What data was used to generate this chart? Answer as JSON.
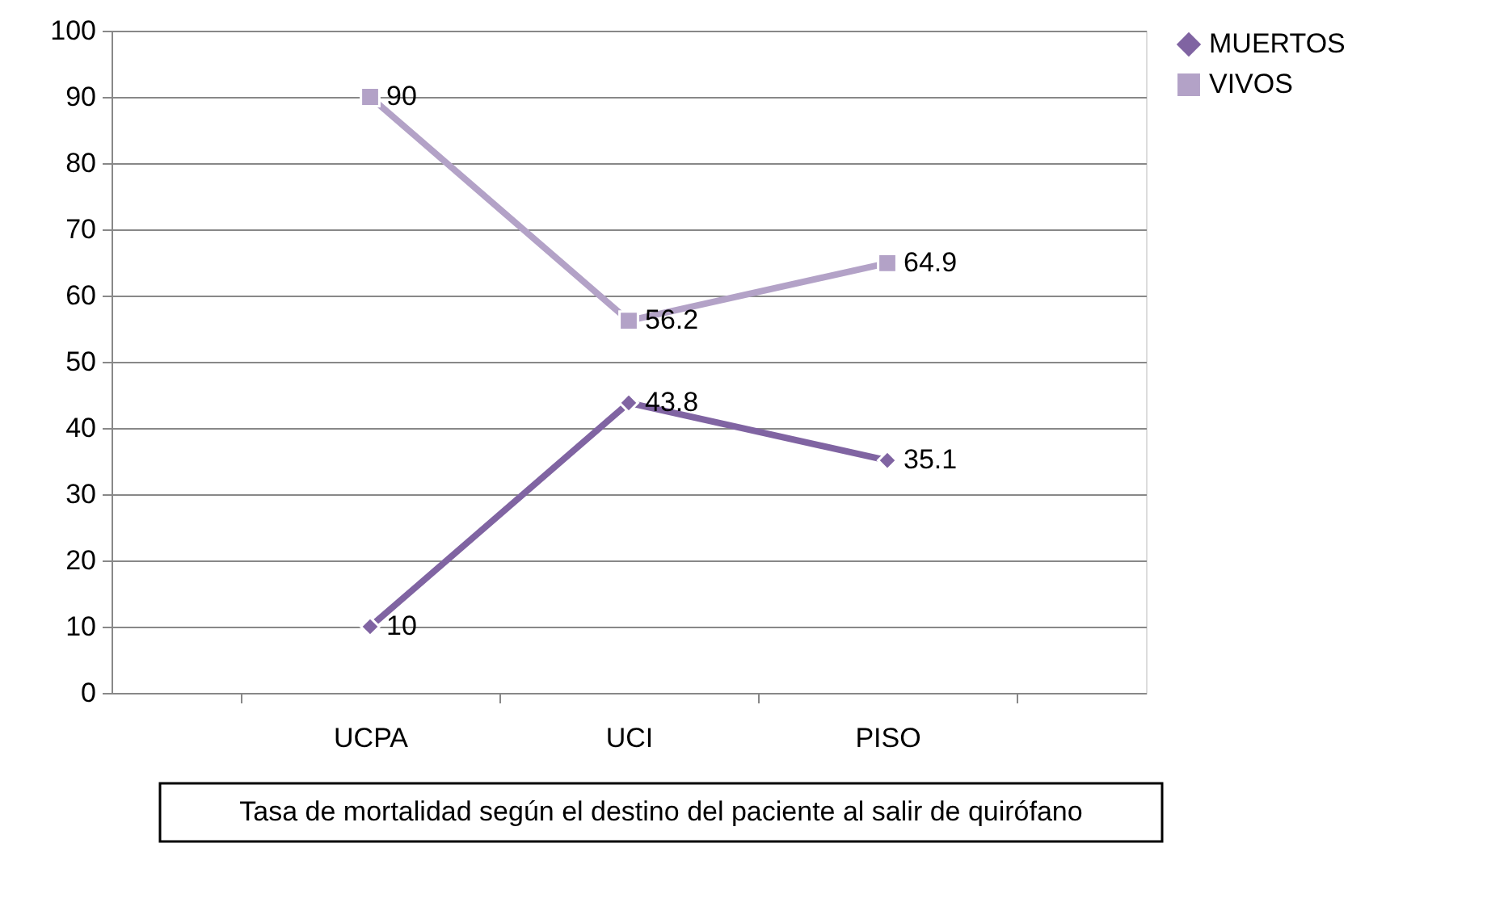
{
  "chart_data": {
    "type": "line",
    "categories": [
      "UCPA",
      "UCI",
      "PISO"
    ],
    "series": [
      {
        "name": "MUERTOS",
        "color": "#8064a2",
        "marker": "diamond",
        "values": [
          10,
          43.8,
          35.1
        ]
      },
      {
        "name": "VIVOS",
        "color": "#b3a2c7",
        "marker": "square",
        "values": [
          90,
          56.2,
          64.9
        ]
      }
    ],
    "ylim": [
      0,
      100
    ],
    "yticks": [
      0,
      10,
      20,
      30,
      40,
      50,
      60,
      70,
      80,
      90,
      100
    ],
    "grid": "y",
    "legend": "right",
    "data_labels": true,
    "line_style": "solid",
    "annotations": [
      "Tasa de mortalidad según el destino del paciente al salir de quirófano"
    ]
  }
}
